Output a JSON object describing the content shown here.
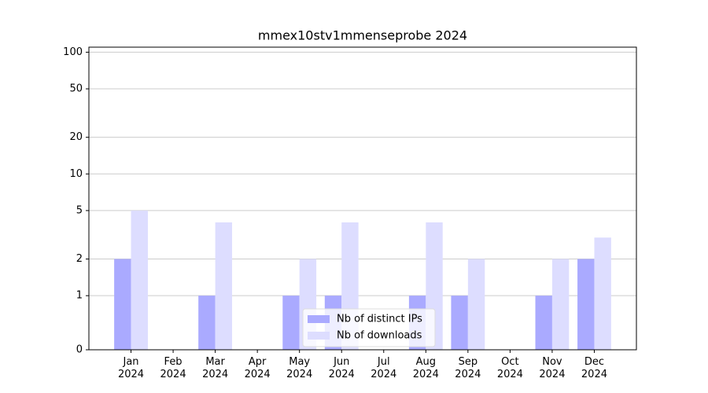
{
  "chart_data": {
    "type": "bar",
    "title": "mmex10stv1mmenseprobe 2024",
    "categories": [
      "Jan\n2024",
      "Feb\n2024",
      "Mar\n2024",
      "Apr\n2024",
      "May\n2024",
      "Jun\n2024",
      "Jul\n2024",
      "Aug\n2024",
      "Sep\n2024",
      "Oct\n2024",
      "Nov\n2024",
      "Dec\n2024"
    ],
    "series": [
      {
        "name": "Nb of distinct IPs",
        "color": "#aaaaff",
        "values": [
          2,
          0,
          1,
          0,
          1,
          1,
          0,
          1,
          1,
          0,
          1,
          2
        ]
      },
      {
        "name": "Nb of downloads",
        "color": "#ddddff",
        "values": [
          5,
          0,
          4,
          0,
          2,
          4,
          0,
          4,
          2,
          0,
          2,
          3
        ]
      }
    ],
    "yscale": "symlog",
    "ylim": [
      0,
      110
    ],
    "yticks": [
      0,
      1,
      2,
      5,
      10,
      20,
      50,
      100
    ],
    "grid": true,
    "legend": "lower center"
  }
}
